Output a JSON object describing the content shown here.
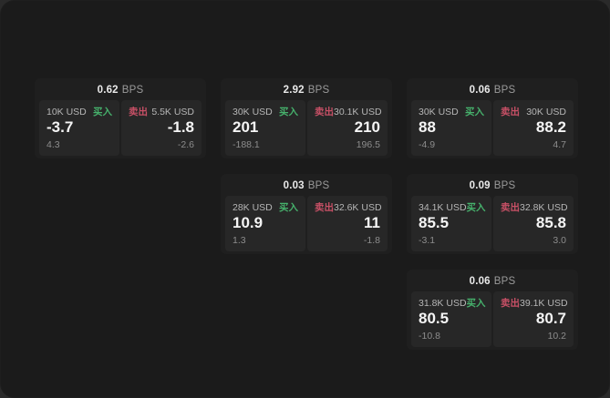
{
  "labels": {
    "bps_suffix": "BPS",
    "buy": "买入",
    "sell": "卖出"
  },
  "colors": {
    "buy_tag": "#46b16c",
    "sell_tag": "#c75066",
    "window_bg": "#1b1b1b",
    "card_bg": "#1f1f1f",
    "panel_bg": "#272727"
  },
  "cards": [
    {
      "bps": "0.62",
      "col": 0,
      "row": 0,
      "buy": {
        "amount": "10K USD",
        "value": "-3.7",
        "delta": "4.3"
      },
      "sell": {
        "amount": "5.5K USD",
        "value": "-1.8",
        "delta": "-2.6"
      }
    },
    {
      "bps": "2.92",
      "col": 1,
      "row": 0,
      "buy": {
        "amount": "30K USD",
        "value": "201",
        "delta": "-188.1"
      },
      "sell": {
        "amount": "30.1K USD",
        "value": "210",
        "delta": "196.5"
      }
    },
    {
      "bps": "0.06",
      "col": 2,
      "row": 0,
      "buy": {
        "amount": "30K USD",
        "value": "88",
        "delta": "-4.9"
      },
      "sell": {
        "amount": "30K USD",
        "value": "88.2",
        "delta": "4.7"
      }
    },
    {
      "bps": "0.03",
      "col": 1,
      "row": 1,
      "buy": {
        "amount": "28K USD",
        "value": "10.9",
        "delta": "1.3"
      },
      "sell": {
        "amount": "32.6K USD",
        "value": "11",
        "delta": "-1.8"
      }
    },
    {
      "bps": "0.09",
      "col": 2,
      "row": 1,
      "buy": {
        "amount": "34.1K USD",
        "value": "85.5",
        "delta": "-3.1"
      },
      "sell": {
        "amount": "32.8K USD",
        "value": "85.8",
        "delta": "3.0"
      }
    },
    {
      "bps": "0.06",
      "col": 2,
      "row": 2,
      "buy": {
        "amount": "31.8K USD",
        "value": "80.5",
        "delta": "-10.8"
      },
      "sell": {
        "amount": "39.1K USD",
        "value": "80.7",
        "delta": "10.2"
      }
    }
  ]
}
